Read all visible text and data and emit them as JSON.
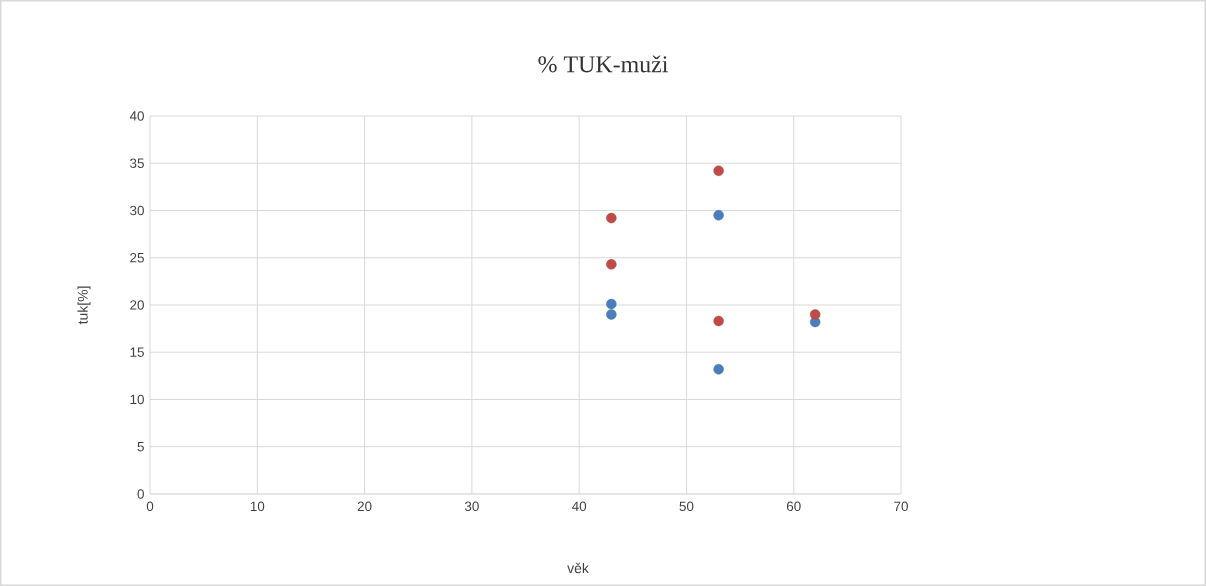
{
  "chart_data": {
    "type": "scatter",
    "title": "% TUK-muži",
    "xlabel": "věk",
    "ylabel": "tuk[%]",
    "xlim": [
      0,
      70
    ],
    "xticks": [
      0,
      10,
      20,
      30,
      40,
      50,
      60,
      70
    ],
    "ylim": [
      0,
      40
    ],
    "yticks": [
      0,
      5,
      10,
      15,
      20,
      25,
      30,
      35,
      40
    ],
    "grid": true,
    "series": [
      {
        "color": "#4a7ebb",
        "x": [
          43,
          43,
          53,
          53,
          62
        ],
        "values": [
          20.1,
          19.0,
          29.5,
          13.2,
          18.2
        ]
      },
      {
        "color": "#be4b48",
        "x": [
          43,
          43,
          53,
          53,
          62
        ],
        "values": [
          29.2,
          24.3,
          34.2,
          18.3,
          19.0
        ]
      }
    ]
  }
}
